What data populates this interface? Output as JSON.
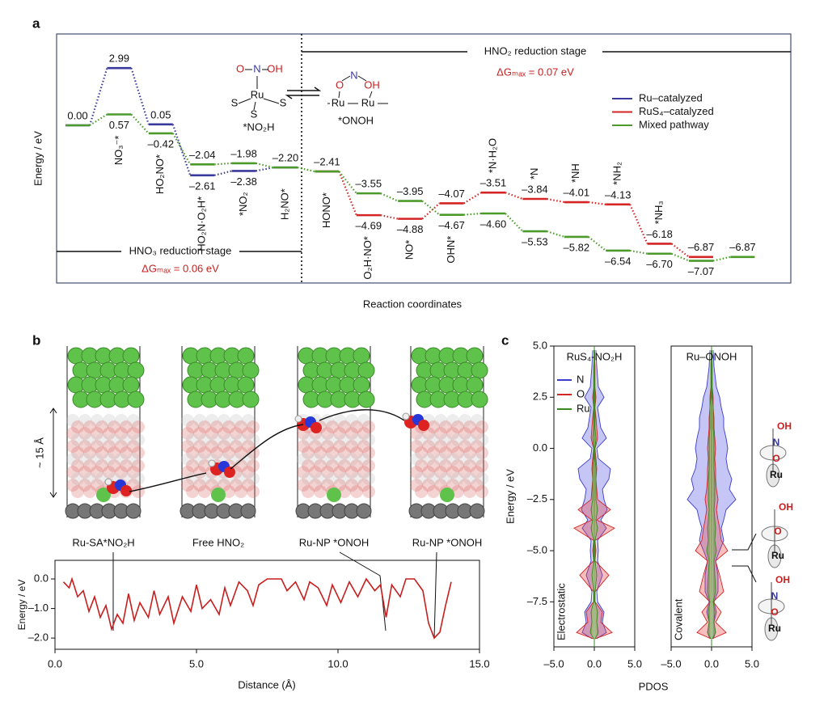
{
  "chart_data": [
    {
      "type": "energy-diagram",
      "panel": "a",
      "x_label": "Reaction coordinates",
      "y_label": "Energy / eV",
      "ylim": [
        -8.23,
        4.77
      ],
      "categories": [
        null,
        "NO₃⁻*",
        "HO₂NO*",
        "HO₂N·O₂H*",
        "*NO₂",
        "H₂NO*",
        "HONO*",
        "O₂H·NO*",
        "NO*",
        "OHN*",
        "*N·H₂O",
        "*N",
        "*NH",
        "*NH₂",
        "*NH₃",
        null,
        null
      ],
      "series": [
        {
          "name": "Ru–catalyzed",
          "color": "#3a3a9c",
          "values": [
            0.0,
            2.99,
            0.05,
            -2.61,
            -2.38,
            -2.2,
            null,
            null,
            null,
            null,
            null,
            null,
            null,
            null,
            null,
            null,
            null
          ],
          "value_labels": [
            null,
            "2.99",
            "0.05",
            "–2.61",
            "–2.38",
            null,
            null,
            null,
            null,
            null,
            null,
            null,
            null,
            null,
            null,
            null,
            null
          ]
        },
        {
          "name": "RuS₄–catalyzed",
          "color": "#d42424",
          "values": [
            null,
            null,
            null,
            null,
            null,
            null,
            -2.41,
            -4.69,
            -4.88,
            -4.07,
            -3.51,
            -3.84,
            -4.01,
            -4.13,
            -6.18,
            -6.87,
            null
          ],
          "value_labels": [
            null,
            null,
            null,
            null,
            null,
            null,
            null,
            "–4.69",
            "–4.88",
            "–4.07",
            "–3.51",
            "–3.84",
            "–4.01",
            "–4.13",
            "–6.18",
            "–6.87",
            null
          ]
        },
        {
          "name": "Mixed pathway",
          "color": "#4c9a2c",
          "values": [
            0.0,
            0.57,
            -0.42,
            -2.04,
            -1.98,
            -2.2,
            -2.41,
            -3.55,
            -3.95,
            -4.67,
            -4.6,
            -5.53,
            -5.82,
            -6.54,
            -6.7,
            -7.07,
            -6.87
          ],
          "value_labels": [
            "0.00",
            "0.57",
            "–0.42",
            "–2.04",
            "–1.98",
            "–2.20",
            "–2.41",
            "–3.55",
            "–3.95",
            "–4.67",
            "–4.60",
            "–5.53",
            "–5.82",
            "–6.54",
            "–6.70",
            "–7.07",
            "–6.87"
          ]
        }
      ],
      "stages": [
        {
          "label": "HNO₃ reduction stage",
          "dg": "ΔGₘₐₓ = 0.06 eV"
        },
        {
          "label": "HNO₂ reduction stage",
          "dg": "ΔGₘₐₓ = 0.07 eV"
        }
      ],
      "schemes": [
        {
          "label": "*NO₂H",
          "atoms": [
            "O",
            "N",
            "OH",
            "Ru",
            "S",
            "S",
            "S"
          ]
        },
        {
          "label": "*ONOH",
          "atoms": [
            "O",
            "N",
            "OH",
            "Ru",
            "Ru"
          ]
        }
      ]
    },
    {
      "type": "line",
      "panel": "b",
      "x_label": "Distance (Å)",
      "y_label": "Energy / eV",
      "color": "#c81e1e",
      "height_label": "~ 15 Å",
      "structure_labels": [
        "Ru-SA*NO₂H",
        "Free HNO₂",
        "Ru-NP *ONOH",
        "Ru-NP *ONOH"
      ],
      "xlim": [
        0,
        15
      ],
      "ylim": [
        -2.38,
        0.63
      ],
      "xticks": [
        {
          "value": 0,
          "label": "0.0"
        },
        {
          "value": 5,
          "label": "5.0"
        },
        {
          "value": 10,
          "label": "10.0"
        },
        {
          "value": 15,
          "label": "15.0"
        }
      ],
      "yticks": [
        {
          "value": 0,
          "label": "0.0"
        },
        {
          "value": -1,
          "label": "–1.0"
        },
        {
          "value": -2,
          "label": "–2.0"
        }
      ],
      "x": [
        0.3,
        0.5,
        0.6,
        0.8,
        1.0,
        1.2,
        1.4,
        1.6,
        1.8,
        2.0,
        2.2,
        2.4,
        2.6,
        2.8,
        3.0,
        3.3,
        3.5,
        3.7,
        4.0,
        4.2,
        4.5,
        4.8,
        5.0,
        5.2,
        5.5,
        5.8,
        6.0,
        6.2,
        6.5,
        6.8,
        7.0,
        7.2,
        7.5,
        8.0,
        8.2,
        8.5,
        8.8,
        9.0,
        9.3,
        9.6,
        9.8,
        10.1,
        10.4,
        10.7,
        11.0,
        11.3,
        11.5,
        11.7,
        11.9,
        12.2,
        12.4,
        12.7,
        13.0,
        13.2,
        13.4,
        13.6,
        13.8,
        14.0
      ],
      "values": [
        -0.1,
        -0.3,
        0.0,
        -0.6,
        -0.4,
        -1.1,
        -0.6,
        -1.3,
        -0.9,
        -1.7,
        -1.2,
        -1.5,
        -0.5,
        -1.4,
        -0.8,
        -1.3,
        -0.4,
        -1.2,
        -0.6,
        -1.5,
        -0.6,
        -1.1,
        -0.2,
        -1.0,
        -0.7,
        -1.2,
        -0.3,
        -0.9,
        -0.1,
        -0.4,
        -0.9,
        -0.2,
        0.0,
        0.0,
        -0.4,
        -0.1,
        -0.7,
        -0.1,
        -0.3,
        -0.9,
        -0.2,
        -0.8,
        -0.1,
        -0.6,
        0.0,
        -0.4,
        -0.2,
        -1.3,
        -0.2,
        -0.6,
        0.0,
        0.0,
        -0.4,
        -1.5,
        -2.0,
        -1.8,
        -0.9,
        -0.1
      ]
    },
    {
      "type": "pdos",
      "panel": "c",
      "title": "RuS₄-NO₂H",
      "note": "Electrostatic",
      "y_label": "Energy / eV",
      "legend": true,
      "xlim": [
        -5,
        5
      ],
      "ylim": [
        -9.7,
        5.0
      ],
      "xticks": [
        {
          "value": -5,
          "label": "–5.0"
        },
        {
          "value": 0,
          "label": "0.0"
        },
        {
          "value": 5,
          "label": "5.0"
        }
      ],
      "yticks": [
        {
          "value": 5,
          "label": "5.0"
        },
        {
          "value": 2.5,
          "label": "2.5"
        },
        {
          "value": 0,
          "label": "0.0"
        },
        {
          "value": -2.5,
          "label": "–2.5"
        },
        {
          "value": -5,
          "label": "–5.0"
        },
        {
          "value": -7.5,
          "label": "–7.5"
        }
      ],
      "energy": [
        4.8,
        4.0,
        3.0,
        2.5,
        2.0,
        1.5,
        1.0,
        0.5,
        0.0,
        -0.5,
        -1.0,
        -1.5,
        -2.0,
        -2.5,
        -3.0,
        -3.5,
        -3.9,
        -4.5,
        -5.0,
        -5.5,
        -6.2,
        -7.0,
        -7.5,
        -8.0,
        -8.5,
        -9.0,
        -9.3
      ],
      "series": [
        {
          "name": "N",
          "color": "#3c3cc8",
          "values": [
            0.2,
            0.3,
            0.5,
            1.2,
            0.4,
            0.6,
            0.8,
            1.5,
            0.3,
            0.5,
            2.0,
            1.8,
            1.0,
            1.2,
            1.6,
            0.8,
            1.5,
            0.4,
            0.5,
            0.4,
            1.0,
            0.3,
            0.4,
            1.2,
            1.0,
            1.5,
            0.3
          ]
        },
        {
          "name": "O",
          "color": "#d42424",
          "values": [
            0,
            0.1,
            0.1,
            0.2,
            0.1,
            0.2,
            0.3,
            0.4,
            0.1,
            0.2,
            0.3,
            0.2,
            0.3,
            0.4,
            2.0,
            0.3,
            2.5,
            0.1,
            0.2,
            0.1,
            1.8,
            0.1,
            0.1,
            1.0,
            0.8,
            2.2,
            0.1
          ]
        },
        {
          "name": "Ru",
          "color": "#3a8a20",
          "values": [
            0.05,
            0.05,
            0.1,
            0.1,
            0.1,
            0.1,
            0.1,
            0.2,
            0.1,
            0.1,
            0.2,
            0.2,
            0.2,
            0.2,
            0.4,
            0.2,
            0.4,
            0.1,
            0.1,
            0.1,
            0.3,
            0.1,
            0.1,
            0.4,
            0.3,
            0.5,
            0.1
          ]
        }
      ]
    },
    {
      "type": "pdos",
      "title": "Ru–ONOH",
      "note": "Covalent",
      "x_label": "PDOS",
      "legend": false,
      "xlim": [
        -5,
        5
      ],
      "ylim": [
        -9.7,
        5.0
      ],
      "xticks": [
        {
          "value": -5,
          "label": "–5.0"
        },
        {
          "value": 0,
          "label": "0.0"
        },
        {
          "value": 5,
          "label": "5.0"
        }
      ],
      "energy": [
        4.8,
        4.0,
        3.0,
        2.5,
        2.0,
        1.5,
        1.0,
        0.5,
        0.0,
        -0.5,
        -1.0,
        -1.5,
        -2.0,
        -2.5,
        -3.0,
        -3.5,
        -3.9,
        -4.5,
        -5.0,
        -5.5,
        -6.2,
        -7.0,
        -7.5,
        -8.0,
        -8.5,
        -9.0,
        -9.3
      ],
      "series": [
        {
          "name": "N",
          "color": "#3c3cc8",
          "values": [
            0.2,
            0.3,
            0.6,
            1.0,
            1.2,
            1.5,
            1.5,
            1.8,
            2.0,
            1.8,
            2.0,
            2.5,
            2.2,
            3.0,
            1.8,
            1.5,
            1.2,
            1.5,
            1.0,
            0.5,
            0.8,
            0.8,
            0.3,
            0.6,
            0.3,
            0.5,
            0.2
          ]
        },
        {
          "name": "O",
          "color": "#d42424",
          "values": [
            0,
            0.1,
            0.1,
            0.2,
            0.2,
            0.3,
            0.3,
            0.4,
            0.5,
            0.4,
            0.5,
            0.5,
            0.6,
            0.8,
            0.6,
            0.8,
            1.0,
            1.2,
            2.0,
            0.5,
            1.0,
            1.5,
            0.2,
            1.2,
            0.5,
            1.8,
            0.1
          ]
        },
        {
          "name": "Ru",
          "color": "#3a8a20",
          "values": [
            0.05,
            0.1,
            0.1,
            0.1,
            0.2,
            0.2,
            0.2,
            0.3,
            0.3,
            0.3,
            0.3,
            0.4,
            0.4,
            0.4,
            0.3,
            0.4,
            0.5,
            0.4,
            0.6,
            0.3,
            0.4,
            0.5,
            0.2,
            0.4,
            0.3,
            0.5,
            0.1
          ]
        }
      ],
      "orbital_labels": [
        [
          "OH",
          "N",
          "O",
          "Ru"
        ],
        [
          "OH",
          "O",
          "Ru"
        ],
        [
          "OH",
          "N",
          "O",
          "Ru"
        ]
      ]
    }
  ]
}
